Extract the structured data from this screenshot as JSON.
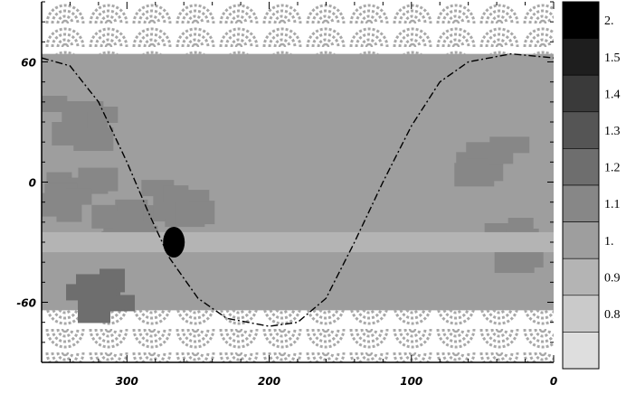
{
  "chart_data": {
    "type": "heatmap",
    "title": "",
    "xlabel": "",
    "ylabel": "",
    "x_range": [
      360,
      0
    ],
    "y_range": [
      -90,
      90
    ],
    "x_ticks": [
      {
        "value": 300,
        "label": "300"
      },
      {
        "value": 200,
        "label": "200"
      },
      {
        "value": 100,
        "label": "100"
      },
      {
        "value": 0,
        "label": "0"
      }
    ],
    "y_ticks": [
      {
        "value": 60,
        "label": "60"
      },
      {
        "value": 0,
        "label": "0"
      },
      {
        "value": -60,
        "label": "-60"
      }
    ],
    "colorbar": {
      "labels": [
        "2.",
        "1.5",
        "1.4",
        "1.3",
        "1.2",
        "1.1",
        "1.",
        "0.9",
        "0.8"
      ],
      "colors": [
        "#000000",
        "#1e1e1e",
        "#3a3a3a",
        "#555555",
        "#6e6e6e",
        "#878787",
        "#9e9e9e",
        "#b4b4b4",
        "#cacaca",
        "#dedede"
      ]
    },
    "background_level": "1.",
    "band": {
      "y_from": -35,
      "y_to": -25,
      "level": "0.9"
    },
    "blob": {
      "x": 267,
      "y": -30,
      "level": "2."
    },
    "patches": [
      {
        "x": 335,
        "y": 30,
        "level": "1.1"
      },
      {
        "x": 340,
        "y": -5,
        "level": "1.1"
      },
      {
        "x": 318,
        "y": -55,
        "level": "1.2"
      },
      {
        "x": 300,
        "y": -20,
        "level": "1.1"
      },
      {
        "x": 265,
        "y": -12,
        "level": "1.1"
      },
      {
        "x": 45,
        "y": 10,
        "level": "1.1"
      },
      {
        "x": 25,
        "y": -30,
        "level": "1.1"
      }
    ],
    "curve": {
      "style": "dash-dot",
      "points": [
        [
          360,
          62
        ],
        [
          340,
          58
        ],
        [
          320,
          40
        ],
        [
          300,
          10
        ],
        [
          285,
          -15
        ],
        [
          270,
          -38
        ],
        [
          250,
          -58
        ],
        [
          230,
          -68
        ],
        [
          200,
          -72
        ],
        [
          180,
          -70
        ],
        [
          160,
          -58
        ],
        [
          140,
          -30
        ],
        [
          120,
          0
        ],
        [
          100,
          28
        ],
        [
          80,
          50
        ],
        [
          60,
          60
        ],
        [
          30,
          64
        ],
        [
          0,
          62
        ]
      ]
    }
  }
}
